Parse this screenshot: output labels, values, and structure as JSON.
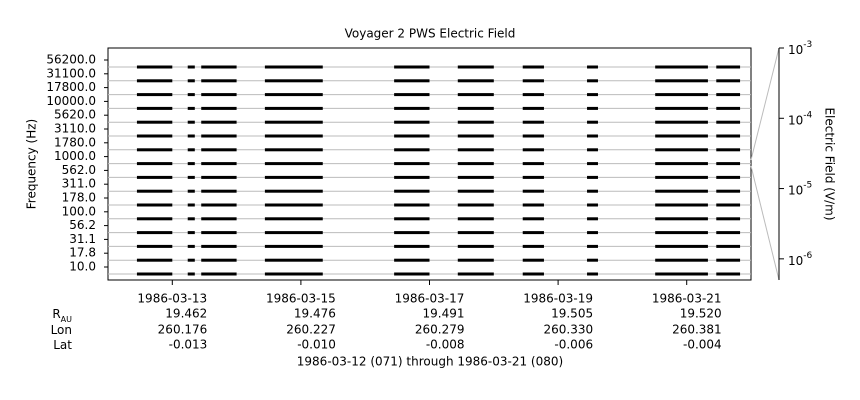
{
  "chart_data": {
    "type": "channel-coverage",
    "title": "Voyager 2 PWS Electric Field",
    "ylabel": "Frequency (Hz)",
    "y2label": "Electric Field (V/m)",
    "categories": [
      "10.0",
      "17.8",
      "31.1",
      "56.2",
      "100.0",
      "178.0",
      "311.0",
      "562.0",
      "1000.0",
      "1780.0",
      "3110.0",
      "5620.0",
      "10000.0",
      "17800.0",
      "31100.0",
      "56200.0"
    ],
    "coverage": [
      [
        12.45,
        13.0
      ],
      [
        13.24,
        13.35
      ],
      [
        13.45,
        14.0
      ],
      [
        14.44,
        15.34
      ],
      [
        16.45,
        17.0
      ],
      [
        17.44,
        18.0
      ],
      [
        18.45,
        18.78
      ],
      [
        19.45,
        19.62
      ],
      [
        20.51,
        21.33
      ],
      [
        21.46,
        21.83
      ]
    ],
    "color": "#000000",
    "row_line_color": "#bbbbbb",
    "xlim": [
      12,
      22
    ],
    "xticks": [
      {
        "value": 13,
        "label": "1986-03-13"
      },
      {
        "value": 15,
        "label": "1986-03-15"
      },
      {
        "value": 17,
        "label": "1986-03-17"
      },
      {
        "value": 19,
        "label": "1986-03-19"
      },
      {
        "value": 21,
        "label": "1986-03-21"
      }
    ],
    "y2scale": "log",
    "y2lim": [
      5e-07,
      0.001
    ],
    "y2ticks": [
      {
        "value": 0.001,
        "label": "10",
        "exponent": "-3"
      },
      {
        "value": 0.0001,
        "label": "10",
        "exponent": "-4"
      },
      {
        "value": 1e-05,
        "label": "10",
        "exponent": "-5"
      },
      {
        "value": 1e-06,
        "label": "10",
        "exponent": "-6"
      }
    ],
    "ephemeris": [
      {
        "label": "R",
        "sub": "AU",
        "values": [
          "19.462",
          "19.476",
          "19.491",
          "19.505",
          "19.520"
        ]
      },
      {
        "label": "Lon",
        "values": [
          "260.176",
          "260.227",
          "260.279",
          "260.330",
          "260.381"
        ]
      },
      {
        "label": "Lat",
        "values": [
          "-0.013",
          "-0.010",
          "-0.008",
          "-0.006",
          "-0.004"
        ]
      }
    ],
    "footer": "1986-03-12 (071) through 1986-03-21 (080)"
  }
}
